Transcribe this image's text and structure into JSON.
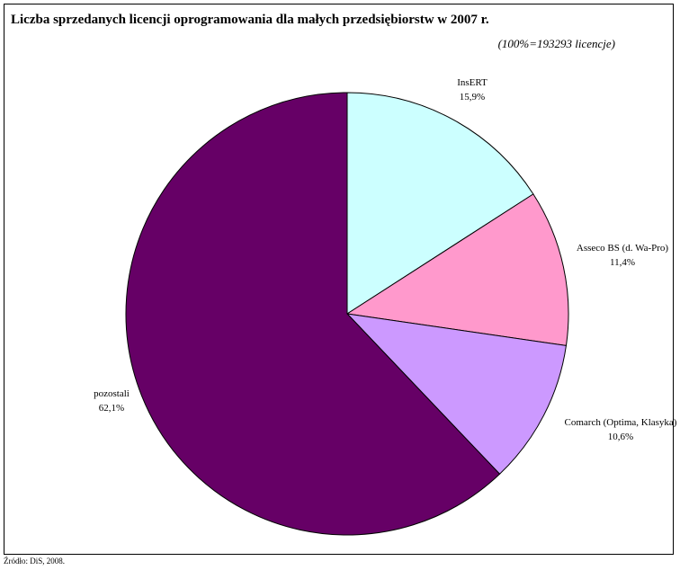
{
  "title": "Liczba sprzedanych licencji oprogramowania dla małych przedsiębiorstw w 2007 r.",
  "subtitle": "(100%=193293 licencje)",
  "source": "Źródło: DiS, 2008.",
  "chart_data": {
    "type": "pie",
    "start_angle_deg": 0,
    "direction": "clockwise",
    "slices": [
      {
        "label": "InsERT",
        "value": 15.9,
        "value_label": "15,9%",
        "color": "#CCFFFF"
      },
      {
        "label": "Asseco BS (d. Wa-Pro)",
        "value": 11.4,
        "value_label": "11,4%",
        "color": "#FF99CC"
      },
      {
        "label": "Comarch (Optima, Klasyka)",
        "value": 10.6,
        "value_label": "10,6%",
        "color": "#CC99FF"
      },
      {
        "label": "pozostali",
        "value": 62.1,
        "value_label": "62,1%",
        "color": "#660066"
      }
    ]
  }
}
